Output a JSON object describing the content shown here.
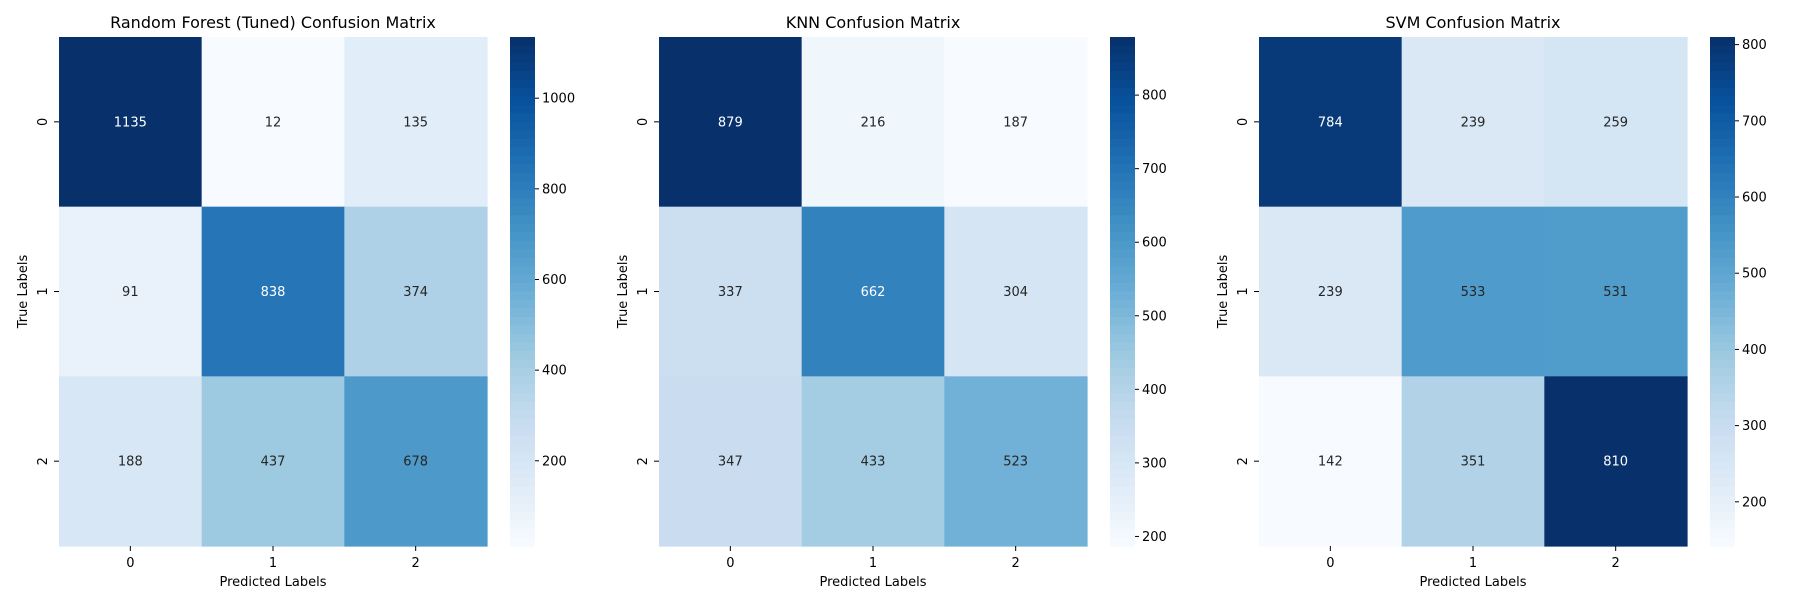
{
  "chart_data": [
    {
      "type": "heatmap",
      "title": "Random Forest (Tuned) Confusion Matrix",
      "xlabel": "Predicted Labels",
      "ylabel": "True Labels",
      "x_categories": [
        "0",
        "1",
        "2"
      ],
      "y_categories": [
        "0",
        "1",
        "2"
      ],
      "matrix": [
        [
          1135,
          12,
          135
        ],
        [
          91,
          838,
          374
        ],
        [
          188,
          437,
          678
        ]
      ],
      "colormap": "Blues",
      "colorbar": {
        "min": 12,
        "max": 1135,
        "ticks": [
          200,
          400,
          600,
          800,
          1000
        ]
      }
    },
    {
      "type": "heatmap",
      "title": "KNN Confusion Matrix",
      "xlabel": "Predicted Labels",
      "ylabel": "True Labels",
      "x_categories": [
        "0",
        "1",
        "2"
      ],
      "y_categories": [
        "0",
        "1",
        "2"
      ],
      "matrix": [
        [
          879,
          216,
          187
        ],
        [
          337,
          662,
          304
        ],
        [
          347,
          433,
          523
        ]
      ],
      "colormap": "Blues",
      "colorbar": {
        "min": 187,
        "max": 879,
        "ticks": [
          200,
          300,
          400,
          500,
          600,
          700,
          800
        ]
      }
    },
    {
      "type": "heatmap",
      "title": "SVM Confusion Matrix",
      "xlabel": "Predicted Labels",
      "ylabel": "True Labels",
      "x_categories": [
        "0",
        "1",
        "2"
      ],
      "y_categories": [
        "0",
        "1",
        "2"
      ],
      "matrix": [
        [
          784,
          239,
          259
        ],
        [
          239,
          533,
          531
        ],
        [
          142,
          351,
          810
        ]
      ],
      "colormap": "Blues",
      "colorbar": {
        "min": 142,
        "max": 810,
        "ticks": [
          200,
          300,
          400,
          500,
          600,
          700,
          800
        ]
      }
    }
  ]
}
